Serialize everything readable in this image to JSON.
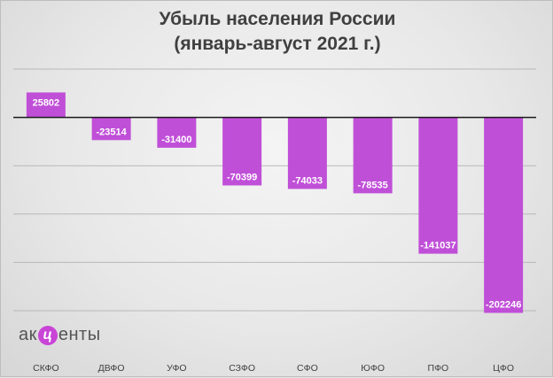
{
  "title_line1": "Убыль населения России",
  "title_line2": "(январь-август 2021 г.)",
  "logo": {
    "prefix": "ак",
    "mid": "ц",
    "suffix": "енты"
  },
  "colors": {
    "bar": "#c04fd8",
    "label": "#ffffff",
    "zero_line": "#1a1a1a",
    "grid": "#b8b8b8"
  },
  "chart_data": {
    "type": "bar",
    "title": "Убыль населения России (январь-август 2021 г.)",
    "categories": [
      "СКФО",
      "ДВФО",
      "УФО",
      "СЗФО",
      "СФО",
      "ЮФО",
      "ПФО",
      "ЦФО"
    ],
    "values": [
      25802,
      -23514,
      -31400,
      -70399,
      -74033,
      -78535,
      -141037,
      -202246
    ],
    "xlabel": "",
    "ylabel": "",
    "ylim": [
      -200000,
      50000
    ],
    "grid": true,
    "legend": "none"
  }
}
